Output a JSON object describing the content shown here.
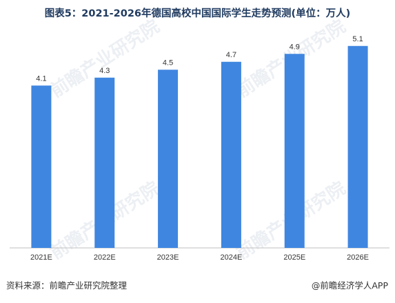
{
  "title": "图表5：2021-2026年德国高校中国国际学生走势预测(单位：万人)",
  "chart_data": {
    "type": "bar",
    "categories": [
      "2021E",
      "2022E",
      "2023E",
      "2024E",
      "2025E",
      "2026E"
    ],
    "values": [
      4.1,
      4.3,
      4.5,
      4.7,
      4.9,
      5.1
    ],
    "data_labels": [
      "4.1",
      "4.3",
      "4.5",
      "4.7",
      "4.9",
      "5.1"
    ],
    "ylim": [
      0,
      5.6
    ],
    "grid": false,
    "legend": "none",
    "bar_color": "#3f86e0",
    "title": "图表5：2021-2026年德国高校中国国际学生走势预测(单位：万人)"
  },
  "footer": {
    "source": "资料来源：前瞻产业研究院整理",
    "credit": "@前瞻经济学人APP"
  },
  "watermark": {
    "text": "前瞻产业研究院"
  },
  "colors": {
    "bar": "#3f86e0",
    "axis": "#bfbfbf",
    "title": "#1f3a5f",
    "text": "#333333"
  }
}
